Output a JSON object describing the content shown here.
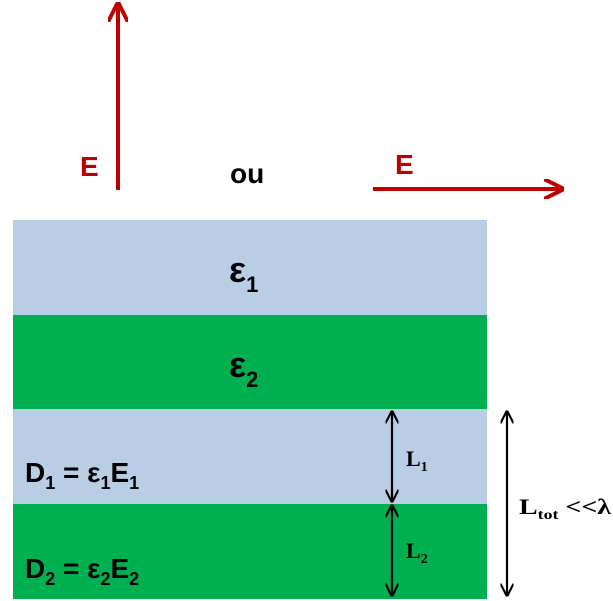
{
  "top": {
    "field_label_vertical": "E",
    "or_word": "ou",
    "field_label_horizontal": "E"
  },
  "layers": {
    "eps1": {
      "symbol": "ε",
      "sub": "1"
    },
    "eps2": {
      "symbol": "ε",
      "sub": "2"
    }
  },
  "equations": {
    "d1": {
      "D": "D",
      "D_sub": "1",
      "eq": " = ε",
      "eps_sub": "1",
      "E": "E",
      "E_sub": "1"
    },
    "d2": {
      "D": "D",
      "D_sub": "2",
      "eq": " = ε",
      "eps_sub": "2",
      "E": "E",
      "E_sub": "2"
    }
  },
  "dimensions": {
    "L1": {
      "main": "L",
      "sub": "1"
    },
    "L2": {
      "main": "L",
      "sub": "2"
    },
    "Ltot": {
      "main": "L",
      "sub": "tot",
      "rest": " <<λ"
    }
  },
  "colors": {
    "layer_light": "#b9cde4",
    "layer_green": "#00b050",
    "arrow_red": "#c00000",
    "text_red": "#c00000",
    "text_dark": "#000000"
  }
}
